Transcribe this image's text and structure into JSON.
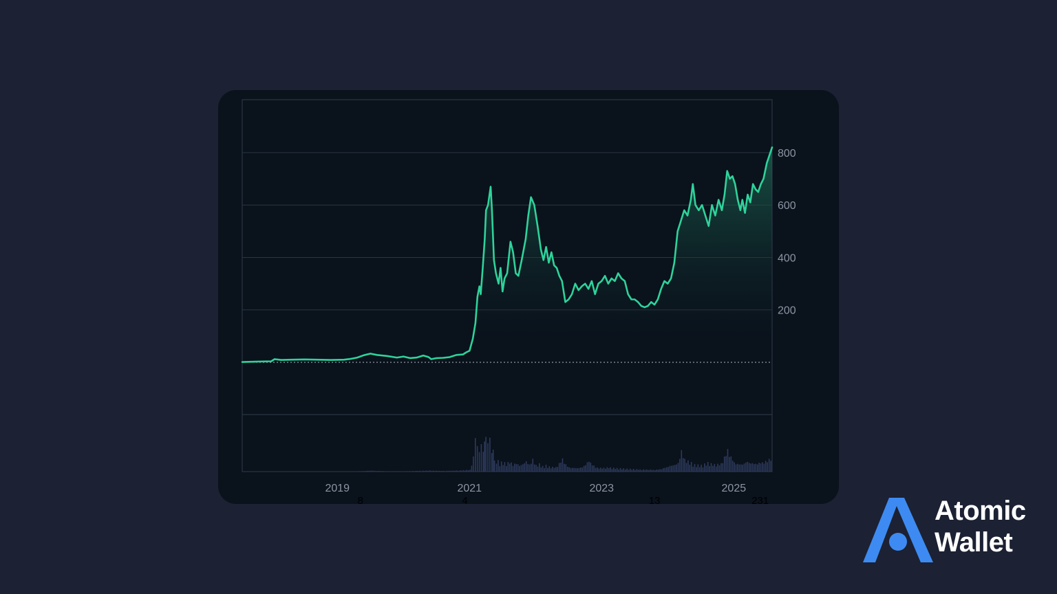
{
  "chart_data": {
    "type": "area",
    "title": "",
    "xlabel": "",
    "ylabel": "",
    "x_tick_labels": [
      "2019",
      "2021",
      "2023",
      "2025"
    ],
    "x_ticks": [
      2019,
      2021,
      2023,
      2025
    ],
    "y_ticks": [
      200,
      400,
      600,
      800
    ],
    "xlim": [
      2017.56,
      2025.58
    ],
    "ylim": [
      0,
      1000
    ],
    "grid": true,
    "legend": "none",
    "baseline": 0,
    "colors": {
      "line": "#2fd39a",
      "area_top": "#1e6b55",
      "area_bottom": "#0a121c",
      "grid": "#2a3644",
      "volume": "#2d3a5c",
      "baseline": "#b4bcc8"
    },
    "series": [
      {
        "values": [
          [
            2017.56,
            1
          ],
          [
            2017.8,
            3
          ],
          [
            2018.0,
            4
          ],
          [
            2018.05,
            12
          ],
          [
            2018.15,
            9
          ],
          [
            2018.3,
            10
          ],
          [
            2018.5,
            11
          ],
          [
            2018.7,
            10
          ],
          [
            2018.9,
            9
          ],
          [
            2019.1,
            10
          ],
          [
            2019.2,
            13
          ],
          [
            2019.3,
            18
          ],
          [
            2019.4,
            27
          ],
          [
            2019.5,
            33
          ],
          [
            2019.6,
            28
          ],
          [
            2019.75,
            24
          ],
          [
            2019.9,
            18
          ],
          [
            2020.0,
            22
          ],
          [
            2020.1,
            16
          ],
          [
            2020.2,
            18
          ],
          [
            2020.3,
            26
          ],
          [
            2020.38,
            20
          ],
          [
            2020.42,
            12
          ],
          [
            2020.5,
            16
          ],
          [
            2020.6,
            17
          ],
          [
            2020.7,
            20
          ],
          [
            2020.8,
            28
          ],
          [
            2020.9,
            30
          ],
          [
            2020.95,
            38
          ],
          [
            2021.0,
            44
          ],
          [
            2021.05,
            90
          ],
          [
            2021.09,
            150
          ],
          [
            2021.12,
            250
          ],
          [
            2021.15,
            290
          ],
          [
            2021.17,
            260
          ],
          [
            2021.2,
            360
          ],
          [
            2021.23,
            470
          ],
          [
            2021.25,
            580
          ],
          [
            2021.28,
            600
          ],
          [
            2021.32,
            670
          ],
          [
            2021.34,
            580
          ],
          [
            2021.37,
            390
          ],
          [
            2021.4,
            340
          ],
          [
            2021.44,
            300
          ],
          [
            2021.47,
            360
          ],
          [
            2021.5,
            270
          ],
          [
            2021.53,
            320
          ],
          [
            2021.57,
            340
          ],
          [
            2021.62,
            460
          ],
          [
            2021.66,
            420
          ],
          [
            2021.7,
            340
          ],
          [
            2021.74,
            330
          ],
          [
            2021.79,
            390
          ],
          [
            2021.85,
            470
          ],
          [
            2021.89,
            560
          ],
          [
            2021.93,
            630
          ],
          [
            2021.98,
            600
          ],
          [
            2022.03,
            520
          ],
          [
            2022.08,
            430
          ],
          [
            2022.12,
            390
          ],
          [
            2022.16,
            440
          ],
          [
            2022.2,
            380
          ],
          [
            2022.24,
            420
          ],
          [
            2022.28,
            370
          ],
          [
            2022.32,
            360
          ],
          [
            2022.36,
            330
          ],
          [
            2022.4,
            310
          ],
          [
            2022.45,
            230
          ],
          [
            2022.5,
            240
          ],
          [
            2022.55,
            260
          ],
          [
            2022.6,
            300
          ],
          [
            2022.65,
            275
          ],
          [
            2022.7,
            290
          ],
          [
            2022.75,
            300
          ],
          [
            2022.8,
            280
          ],
          [
            2022.85,
            310
          ],
          [
            2022.9,
            260
          ],
          [
            2022.95,
            300
          ],
          [
            2023.0,
            310
          ],
          [
            2023.05,
            330
          ],
          [
            2023.1,
            300
          ],
          [
            2023.15,
            320
          ],
          [
            2023.2,
            310
          ],
          [
            2023.25,
            340
          ],
          [
            2023.3,
            320
          ],
          [
            2023.35,
            310
          ],
          [
            2023.4,
            260
          ],
          [
            2023.45,
            240
          ],
          [
            2023.5,
            240
          ],
          [
            2023.55,
            230
          ],
          [
            2023.6,
            215
          ],
          [
            2023.65,
            210
          ],
          [
            2023.7,
            215
          ],
          [
            2023.75,
            230
          ],
          [
            2023.8,
            220
          ],
          [
            2023.85,
            240
          ],
          [
            2023.9,
            280
          ],
          [
            2023.95,
            310
          ],
          [
            2024.0,
            300
          ],
          [
            2024.05,
            320
          ],
          [
            2024.1,
            380
          ],
          [
            2024.15,
            500
          ],
          [
            2024.2,
            540
          ],
          [
            2024.25,
            580
          ],
          [
            2024.3,
            560
          ],
          [
            2024.35,
            620
          ],
          [
            2024.38,
            680
          ],
          [
            2024.42,
            600
          ],
          [
            2024.47,
            580
          ],
          [
            2024.52,
            600
          ],
          [
            2024.57,
            560
          ],
          [
            2024.62,
            520
          ],
          [
            2024.67,
            600
          ],
          [
            2024.72,
            560
          ],
          [
            2024.77,
            620
          ],
          [
            2024.82,
            580
          ],
          [
            2024.86,
            640
          ],
          [
            2024.9,
            730
          ],
          [
            2024.94,
            700
          ],
          [
            2024.98,
            710
          ],
          [
            2025.02,
            680
          ],
          [
            2025.06,
            620
          ],
          [
            2025.1,
            580
          ],
          [
            2025.13,
            620
          ],
          [
            2025.17,
            570
          ],
          [
            2025.21,
            640
          ],
          [
            2025.25,
            610
          ],
          [
            2025.29,
            680
          ],
          [
            2025.33,
            660
          ],
          [
            2025.37,
            650
          ],
          [
            2025.41,
            680
          ],
          [
            2025.45,
            700
          ],
          [
            2025.5,
            760
          ],
          [
            2025.58,
            820
          ]
        ]
      }
    ],
    "volume": {
      "tick_labels": [
        "8",
        "4",
        "13",
        "231"
      ],
      "tick_x": [
        2019.35,
        2020.93,
        2023.8,
        2025.4
      ],
      "values": [
        [
          2017.56,
          0
        ],
        [
          2018.0,
          0
        ],
        [
          2018.5,
          0
        ],
        [
          2019.0,
          0
        ],
        [
          2019.3,
          1
        ],
        [
          2019.4,
          2
        ],
        [
          2019.5,
          3
        ],
        [
          2019.6,
          2
        ],
        [
          2019.75,
          1
        ],
        [
          2019.9,
          1
        ],
        [
          2020.0,
          1
        ],
        [
          2020.2,
          2
        ],
        [
          2020.4,
          3
        ],
        [
          2020.6,
          2
        ],
        [
          2020.8,
          3
        ],
        [
          2020.9,
          4
        ],
        [
          2021.0,
          5
        ],
        [
          2021.05,
          40
        ],
        [
          2021.08,
          90
        ],
        [
          2021.11,
          70
        ],
        [
          2021.14,
          55
        ],
        [
          2021.17,
          80
        ],
        [
          2021.2,
          60
        ],
        [
          2021.24,
          110
        ],
        [
          2021.27,
          95
        ],
        [
          2021.3,
          120
        ],
        [
          2021.33,
          70
        ],
        [
          2021.37,
          45
        ],
        [
          2021.4,
          35
        ],
        [
          2021.45,
          25
        ],
        [
          2021.5,
          28
        ],
        [
          2021.55,
          22
        ],
        [
          2021.6,
          30
        ],
        [
          2021.65,
          20
        ],
        [
          2021.7,
          25
        ],
        [
          2021.75,
          18
        ],
        [
          2021.8,
          22
        ],
        [
          2021.85,
          30
        ],
        [
          2021.9,
          20
        ],
        [
          2021.95,
          35
        ],
        [
          2022.0,
          18
        ],
        [
          2022.05,
          22
        ],
        [
          2022.1,
          15
        ],
        [
          2022.15,
          18
        ],
        [
          2022.2,
          14
        ],
        [
          2022.3,
          12
        ],
        [
          2022.4,
          35
        ],
        [
          2022.45,
          20
        ],
        [
          2022.5,
          12
        ],
        [
          2022.6,
          10
        ],
        [
          2022.7,
          12
        ],
        [
          2022.8,
          30
        ],
        [
          2022.9,
          12
        ],
        [
          2023.0,
          10
        ],
        [
          2023.1,
          12
        ],
        [
          2023.2,
          10
        ],
        [
          2023.3,
          9
        ],
        [
          2023.4,
          8
        ],
        [
          2023.5,
          7
        ],
        [
          2023.6,
          6
        ],
        [
          2023.7,
          6
        ],
        [
          2023.8,
          5
        ],
        [
          2023.9,
          8
        ],
        [
          2024.0,
          15
        ],
        [
          2024.05,
          18
        ],
        [
          2024.1,
          20
        ],
        [
          2024.15,
          25
        ],
        [
          2024.2,
          60
        ],
        [
          2024.25,
          35
        ],
        [
          2024.3,
          30
        ],
        [
          2024.4,
          20
        ],
        [
          2024.5,
          18
        ],
        [
          2024.6,
          25
        ],
        [
          2024.7,
          20
        ],
        [
          2024.8,
          22
        ],
        [
          2024.9,
          60
        ],
        [
          2025.0,
          25
        ],
        [
          2025.1,
          20
        ],
        [
          2025.2,
          28
        ],
        [
          2025.3,
          22
        ],
        [
          2025.4,
          25
        ],
        [
          2025.5,
          30
        ],
        [
          2025.58,
          45
        ]
      ],
      "ylim": [
        0,
        130
      ]
    }
  },
  "brand": {
    "logo_icon": "atomic-wallet-logo-icon",
    "line1": "Atomic",
    "line2": "Wallet",
    "color": "#3d8bf2"
  }
}
